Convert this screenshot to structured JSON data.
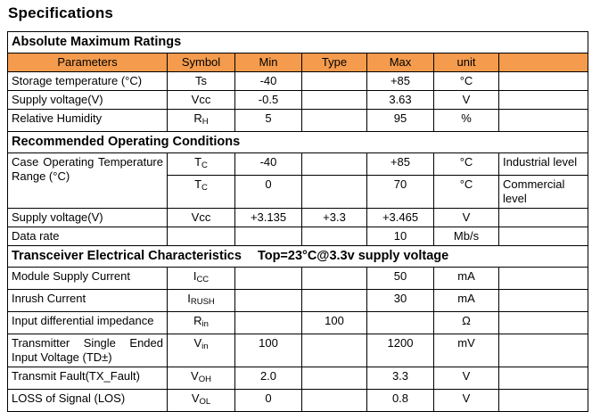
{
  "page": {
    "title": "Specifications"
  },
  "colors": {
    "header_bg": "#F49B4D",
    "border": "#000000"
  },
  "table": {
    "column_headers": [
      "Parameters",
      "Symbol",
      "Min",
      "Type",
      "Max",
      "unit",
      ""
    ],
    "sections": [
      {
        "title": "Absolute Maximum Ratings",
        "title_extra": "",
        "show_column_headers": true,
        "rows": [
          {
            "param": "Storage temperature (°C)",
            "symbol_base": "Ts",
            "symbol_sub": "",
            "min": "-40",
            "type": "",
            "max": "+85",
            "unit": "°C",
            "note": ""
          },
          {
            "param": "Supply voltage(V)",
            "symbol_base": "Vcc",
            "symbol_sub": "",
            "min": "-0.5",
            "type": "",
            "max": "3.63",
            "unit": "V",
            "note": ""
          },
          {
            "param": "Relative Humidity",
            "symbol_base": "R",
            "symbol_sub": "H",
            "min": "5",
            "type": "",
            "max": "95",
            "unit": "%",
            "note": ""
          }
        ]
      },
      {
        "title": "Recommended Operating Conditions",
        "title_extra": "",
        "show_column_headers": false,
        "rows": [
          {
            "param": [
              "Case Operating Temperature",
              "Range (°C)"
            ],
            "param_rowspan": 2,
            "symbol_base": "T",
            "symbol_sub": "C",
            "min": "-40",
            "type": "",
            "max": "+85",
            "unit": "°C",
            "note": "Industrial level"
          },
          {
            "param": null,
            "symbol_base": "T",
            "symbol_sub": "C",
            "min": "0",
            "type": "",
            "max": "70",
            "unit": "°C",
            "note": "Commercial level"
          },
          {
            "param": "Supply voltage(V)",
            "symbol_base": "Vcc",
            "symbol_sub": "",
            "min": "+3.135",
            "type": "+3.3",
            "max": "+3.465",
            "unit": "V",
            "note": ""
          },
          {
            "param": "Data rate",
            "symbol_base": "",
            "symbol_sub": "",
            "min": "",
            "type": "",
            "max": "10",
            "unit": "Mb/s",
            "note": ""
          }
        ]
      },
      {
        "title": "Transceiver Electrical Characteristics",
        "title_extra": "Top=23°C@3.3v supply voltage",
        "show_column_headers": false,
        "rows": [
          {
            "param": "Module Supply Current",
            "symbol_base": "I",
            "symbol_sub": "CC",
            "min": "",
            "type": "",
            "max": "50",
            "unit": "mA",
            "note": ""
          },
          {
            "param": "Inrush Current",
            "symbol_base": "I",
            "symbol_sub": "RUSH",
            "min": "",
            "type": "",
            "max": "30",
            "unit": "mA",
            "note": ""
          },
          {
            "param": "Input differential impedance",
            "symbol_base": "R",
            "symbol_sub": "in",
            "min": "",
            "type": "100",
            "max": "",
            "unit": "Ω",
            "note": ""
          },
          {
            "param": [
              "Transmitter Single Ended",
              "Input Voltage (TD±)"
            ],
            "symbol_base": "V",
            "symbol_sub": "in",
            "min": "100",
            "type": "",
            "max": "1200",
            "unit": "mV",
            "note": ""
          },
          {
            "param": "Transmit Fault(TX_Fault)",
            "symbol_base": "V",
            "symbol_sub": "OH",
            "min": "2.0",
            "type": "",
            "max": "3.3",
            "unit": "V",
            "note": ""
          },
          {
            "param": "LOSS of Signal (LOS)",
            "symbol_base": "V",
            "symbol_sub": "OL",
            "min": "0",
            "type": "",
            "max": "0.8",
            "unit": "V",
            "note": ""
          }
        ]
      }
    ]
  }
}
